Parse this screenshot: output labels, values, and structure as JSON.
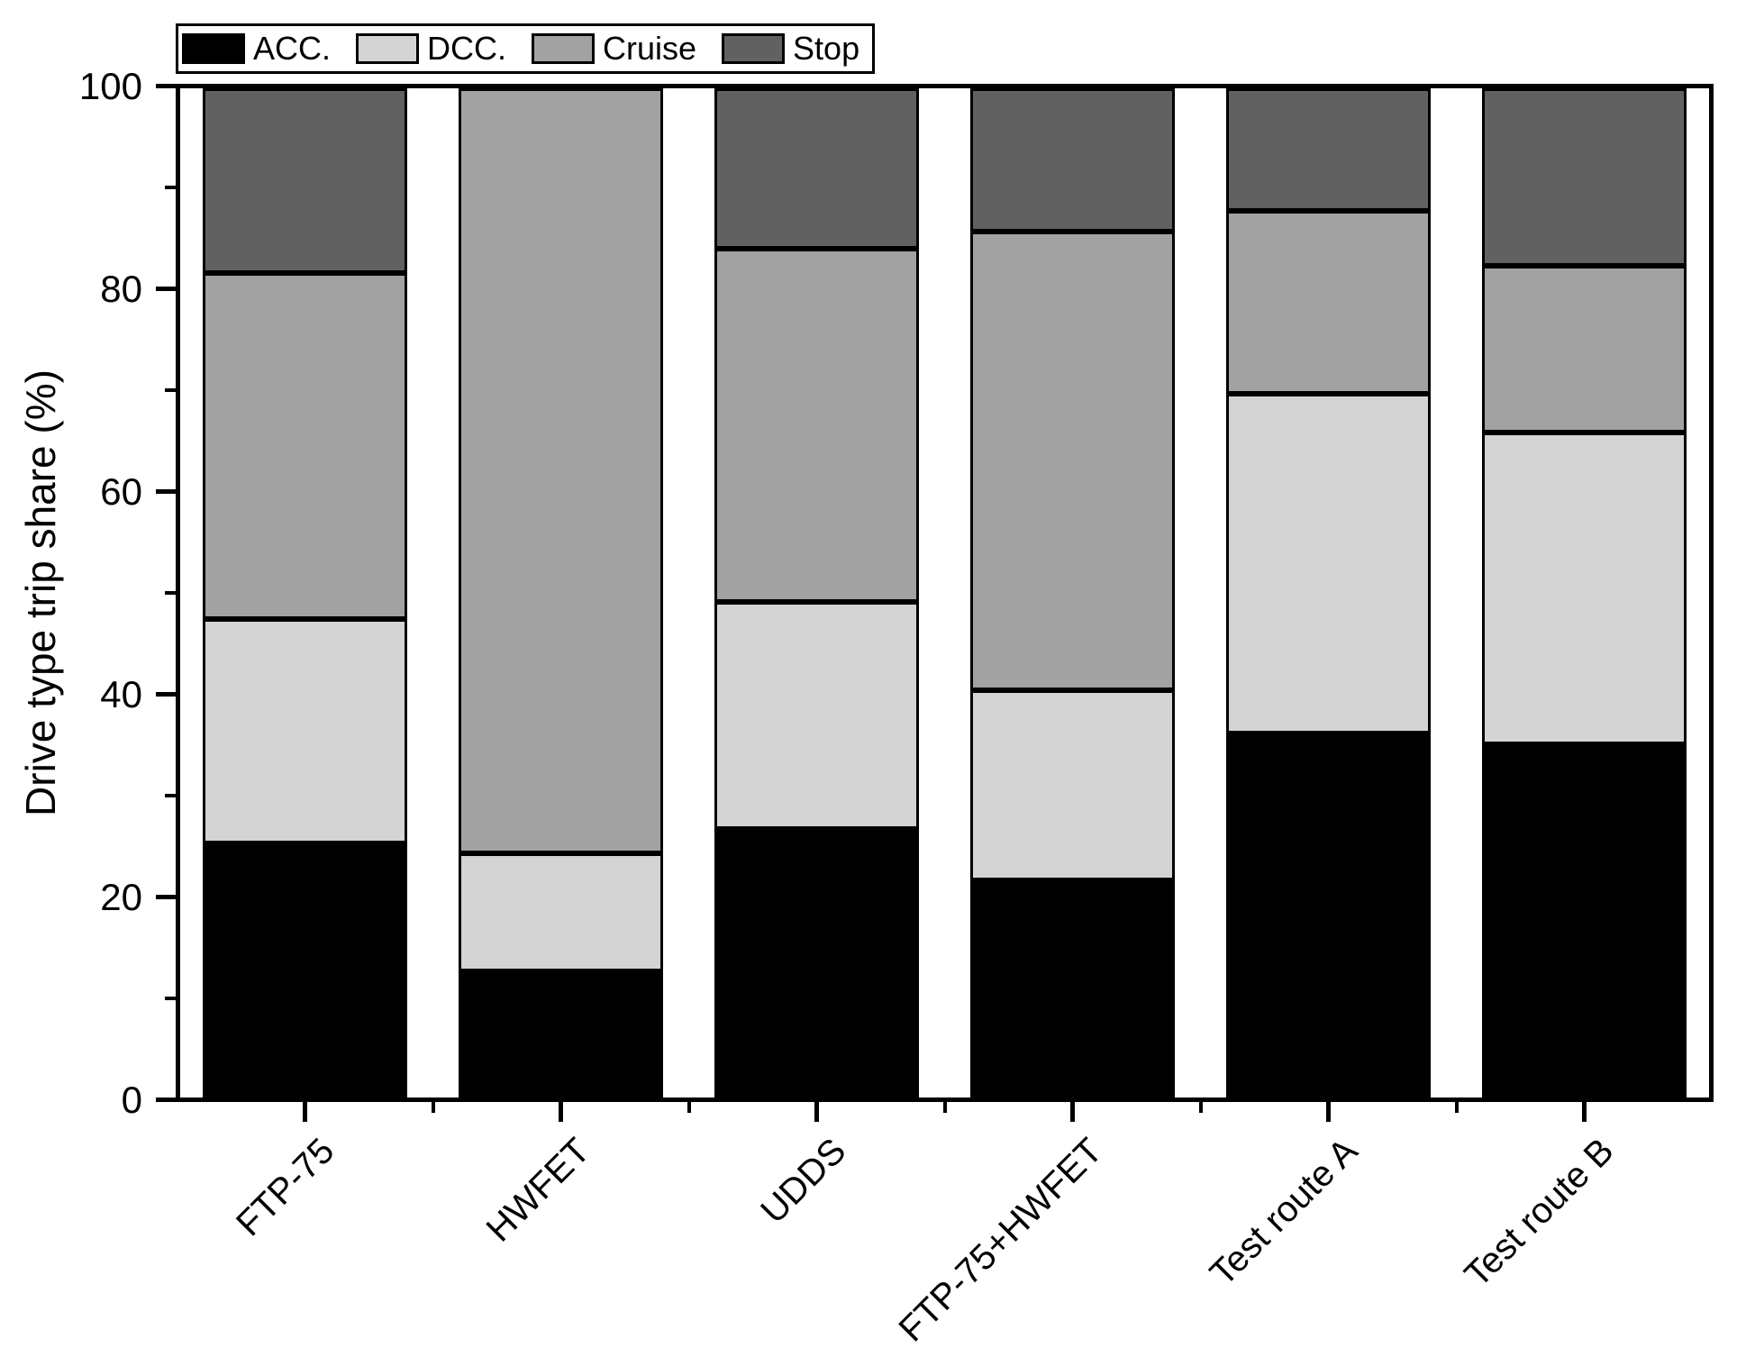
{
  "chart_data": {
    "type": "bar",
    "stacked": true,
    "orientation": "vertical",
    "title": "",
    "xlabel": "",
    "ylabel": "Drive type trip share (%)",
    "ylim": [
      0,
      100
    ],
    "yticks_major": [
      0,
      20,
      40,
      60,
      80,
      100
    ],
    "yticks_minor": [
      10,
      30,
      50,
      70,
      90
    ],
    "grid": false,
    "legend_position": "top-left",
    "legend_entries": [
      "ACC.",
      "DCC.",
      "Cruise",
      "Stop"
    ],
    "categories": [
      "FTP-75",
      "HWFET",
      "UDDS",
      "FTP-75+HWFET",
      "Test route A",
      "Test route B"
    ],
    "series": [
      {
        "name": "ACC.",
        "color": "#000000",
        "values": [
          25.2,
          12.5,
          26.6,
          21.5,
          36.1,
          35.0
        ]
      },
      {
        "name": "DCC.",
        "color": "#d4d4d4",
        "values": [
          22.2,
          11.7,
          22.5,
          18.9,
          33.6,
          30.9
        ]
      },
      {
        "name": "Cruise",
        "color": "#a2a2a2",
        "values": [
          34.3,
          75.8,
          35.0,
          45.4,
          18.2,
          16.5
        ]
      },
      {
        "name": "Stop",
        "color": "#616161",
        "values": [
          18.3,
          0.0,
          15.9,
          14.2,
          12.1,
          17.6
        ]
      }
    ],
    "bar_edge_color": "#000000"
  }
}
